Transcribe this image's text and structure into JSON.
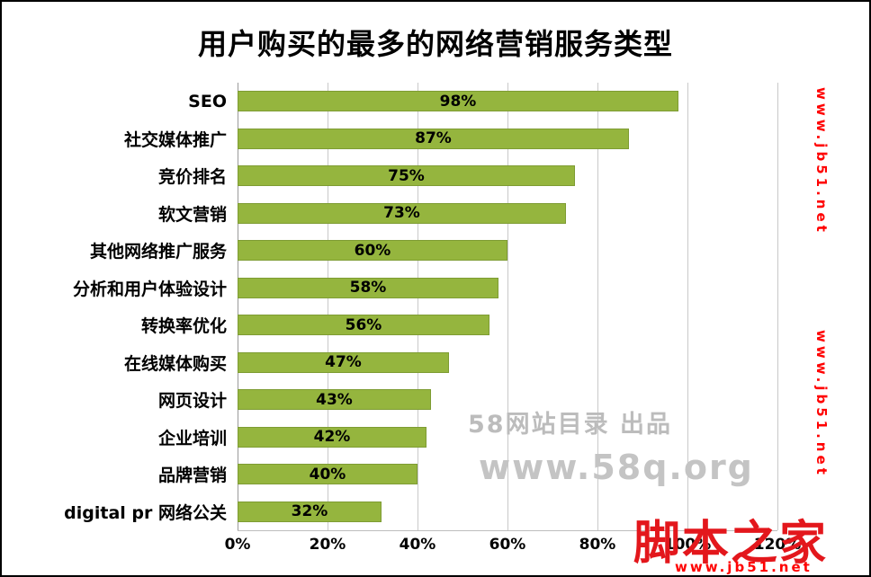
{
  "title": "用户购买的最多的网络营销服务类型",
  "chart_data": {
    "type": "bar",
    "orientation": "horizontal",
    "title": "用户购买的最多的网络营销服务类型",
    "categories": [
      "SEO",
      "社交媒体推广",
      "竞价排名",
      "软文营销",
      "其他网络推广服务",
      "分析和用户体验设计",
      "转换率优化",
      "在线媒体购买",
      "网页设计",
      "企业培训",
      "品牌营销",
      "digital pr 网络公关"
    ],
    "values": [
      98,
      87,
      75,
      73,
      60,
      58,
      56,
      47,
      43,
      42,
      40,
      32
    ],
    "value_labels": [
      "98%",
      "87%",
      "75%",
      "73%",
      "60%",
      "58%",
      "56%",
      "47%",
      "43%",
      "42%",
      "40%",
      "32%"
    ],
    "xlabel_ticks": [
      "0%",
      "20%",
      "40%",
      "60%",
      "80%",
      "100%",
      "120%"
    ],
    "xlim": [
      0,
      120
    ],
    "grid": true,
    "legend": "none",
    "bar_color": "#95b53e",
    "bar_border_color": "#7e9c33"
  },
  "watermarks": {
    "center_line1": "58网站目录 出品",
    "center_line2": "www.58q.org",
    "side_url_top": "www.jb51.net",
    "side_url_bottom": "www.jb51.net",
    "brand_name": "脚本之家",
    "brand_url": "www.jb51.net"
  }
}
